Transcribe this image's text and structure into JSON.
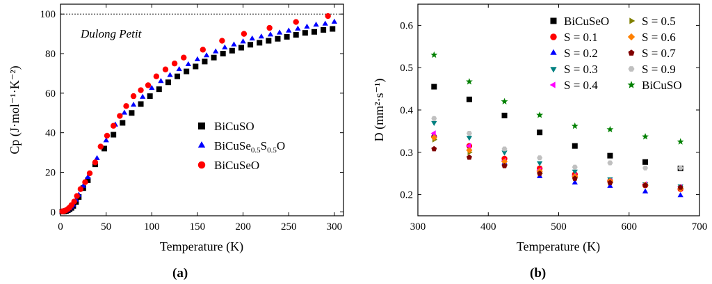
{
  "chart_data": [
    {
      "type": "scatter",
      "panel_label": "a",
      "xlabel": "Temperature (K)",
      "ylabel": "Cp  (J·mol⁻¹·K⁻²)",
      "xlim": [
        0,
        310
      ],
      "ylim": [
        -2,
        105
      ],
      "xticks": [
        0,
        50,
        100,
        150,
        200,
        250,
        300
      ],
      "yticks": [
        0,
        20,
        40,
        60,
        80,
        100
      ],
      "reference_line": {
        "y": 100,
        "style": "dashed"
      },
      "annotation": "Dulong Petit",
      "legend_position": "right",
      "series": [
        {
          "name": "BiCuSO",
          "label_parts": [
            "BiCuSO"
          ],
          "marker": "square",
          "color": "#000000",
          "x": [
            2,
            4,
            6,
            8,
            10,
            12,
            14,
            17,
            20,
            25,
            30,
            38,
            48,
            58,
            68,
            78,
            88,
            98,
            108,
            118,
            128,
            138,
            148,
            158,
            168,
            178,
            188,
            198,
            208,
            218,
            228,
            238,
            248,
            258,
            268,
            278,
            288,
            298
          ],
          "y": [
            0.1,
            0.2,
            0.4,
            0.8,
            1.3,
            2.0,
            3.0,
            5.0,
            7.5,
            12,
            16,
            24,
            32,
            39,
            45,
            50,
            54.5,
            58.5,
            62,
            65.5,
            68.5,
            71,
            73.5,
            76,
            78,
            80,
            81.5,
            83,
            84.5,
            85.5,
            86.5,
            87.5,
            88.5,
            89.5,
            90.5,
            91,
            92,
            92.5
          ]
        },
        {
          "name": "BiCuSe0.5S0.5O",
          "label_parts": [
            "BiCuSe",
            "0.5",
            "S",
            "0.5",
            "O"
          ],
          "marker": "triangle",
          "color": "#0000ff",
          "x": [
            2,
            4,
            6,
            8,
            10,
            12,
            14,
            17,
            20,
            25,
            30,
            40,
            50,
            60,
            70,
            80,
            90,
            100,
            110,
            120,
            130,
            140,
            150,
            160,
            170,
            180,
            190,
            200,
            210,
            220,
            230,
            240,
            250,
            260,
            270,
            280,
            290,
            300
          ],
          "y": [
            0.1,
            0.3,
            0.5,
            1.0,
            1.6,
            2.5,
            3.5,
            6,
            8.5,
            13,
            17.5,
            27,
            36,
            44,
            50,
            54,
            58,
            62.5,
            66,
            69,
            72,
            74.5,
            77,
            79,
            81,
            83,
            84.5,
            86,
            87.5,
            88.5,
            89.5,
            90.5,
            91.5,
            92.5,
            93.5,
            94.5,
            95,
            96
          ]
        },
        {
          "name": "BiCuSeO",
          "label_parts": [
            "BiCuSeO"
          ],
          "marker": "circle",
          "color": "#ff0000",
          "x": [
            2,
            4,
            6,
            8,
            10,
            12,
            15,
            18,
            22,
            27,
            32,
            38,
            44,
            51,
            58,
            65,
            72,
            80,
            88,
            96,
            105,
            115,
            125,
            135,
            156,
            177,
            201,
            229,
            258,
            293
          ],
          "y": [
            0.2,
            0.4,
            0.8,
            1.4,
            2.2,
            3.4,
            5.2,
            8,
            11.5,
            15,
            19.5,
            25,
            33,
            38.5,
            43.5,
            48.5,
            53.5,
            58.5,
            61.5,
            64,
            68.5,
            72,
            75,
            78,
            82,
            86.5,
            90,
            93,
            96,
            99
          ]
        }
      ]
    },
    {
      "type": "scatter",
      "panel_label": "b",
      "xlabel": "Temperature (K)",
      "ylabel": "D  (mm²·s⁻¹)",
      "xlim": [
        300,
        700
      ],
      "ylim": [
        0.15,
        0.65
      ],
      "xticks": [
        300,
        400,
        500,
        600,
        700
      ],
      "yticks": [
        0.2,
        0.3,
        0.4,
        0.5,
        0.6
      ],
      "legend_position": "top",
      "series": [
        {
          "name": "BiCuSeO",
          "marker": "square",
          "color": "#000000",
          "x": [
            323,
            373,
            423,
            473,
            523,
            573,
            623,
            673
          ],
          "y": [
            0.455,
            0.425,
            0.387,
            0.347,
            0.315,
            0.292,
            0.277,
            0.262
          ]
        },
        {
          "name": "S = 0.1",
          "marker": "circle",
          "color": "#ff0000",
          "x": [
            323,
            373,
            423,
            473,
            523,
            573,
            623,
            673
          ],
          "y": [
            0.337,
            0.315,
            0.285,
            0.262,
            0.248,
            0.232,
            0.222,
            0.213
          ]
        },
        {
          "name": "S = 0.2",
          "marker": "triangle",
          "color": "#0000ff",
          "x": [
            323,
            373,
            423,
            473,
            523,
            573,
            623,
            673
          ],
          "y": [
            0.34,
            0.308,
            0.275,
            0.243,
            0.228,
            0.22,
            0.207,
            0.198
          ]
        },
        {
          "name": "S = 0.3",
          "marker": "triangle-down",
          "color": "#008080",
          "x": [
            323,
            373,
            423,
            473,
            523,
            573,
            623,
            673
          ],
          "y": [
            0.37,
            0.335,
            0.3,
            0.275,
            0.255,
            0.237,
            0.225,
            0.22
          ]
        },
        {
          "name": "S = 0.4",
          "marker": "triangle-left",
          "color": "#ff00ff",
          "x": [
            323,
            373,
            423,
            473,
            523,
            573,
            623,
            673
          ],
          "y": [
            0.345,
            0.315,
            0.28,
            0.258,
            0.245,
            0.232,
            0.225,
            0.218
          ]
        },
        {
          "name": "S = 0.5",
          "marker": "triangle-right",
          "color": "#808000",
          "x": [
            323,
            373,
            423,
            473,
            523,
            573,
            623,
            673
          ],
          "y": [
            0.33,
            0.3,
            0.27,
            0.25,
            0.24,
            0.228,
            0.222,
            0.215
          ]
        },
        {
          "name": "S = 0.6",
          "marker": "diamond",
          "color": "#ff8000",
          "x": [
            323,
            373,
            423,
            473,
            523,
            573,
            623,
            673
          ],
          "y": [
            0.335,
            0.305,
            0.278,
            0.255,
            0.243,
            0.232,
            0.223,
            0.214
          ]
        },
        {
          "name": "S = 0.7",
          "marker": "pentagon",
          "color": "#800000",
          "x": [
            323,
            373,
            423,
            473,
            523,
            573,
            623,
            673
          ],
          "y": [
            0.308,
            0.288,
            0.268,
            0.25,
            0.238,
            0.228,
            0.222,
            0.217
          ]
        },
        {
          "name": "S = 0.9",
          "marker": "hexagon",
          "color": "#c0c0c0",
          "x": [
            323,
            373,
            423,
            473,
            523,
            573,
            623,
            673
          ],
          "y": [
            0.38,
            0.345,
            0.308,
            0.287,
            0.265,
            0.275,
            0.263,
            0.263
          ]
        },
        {
          "name": "BiCuSO",
          "marker": "star",
          "color": "#008000",
          "x": [
            323,
            373,
            423,
            473,
            523,
            573,
            623,
            673
          ],
          "y": [
            0.53,
            0.467,
            0.42,
            0.388,
            0.362,
            0.354,
            0.337,
            0.325
          ]
        }
      ]
    }
  ]
}
